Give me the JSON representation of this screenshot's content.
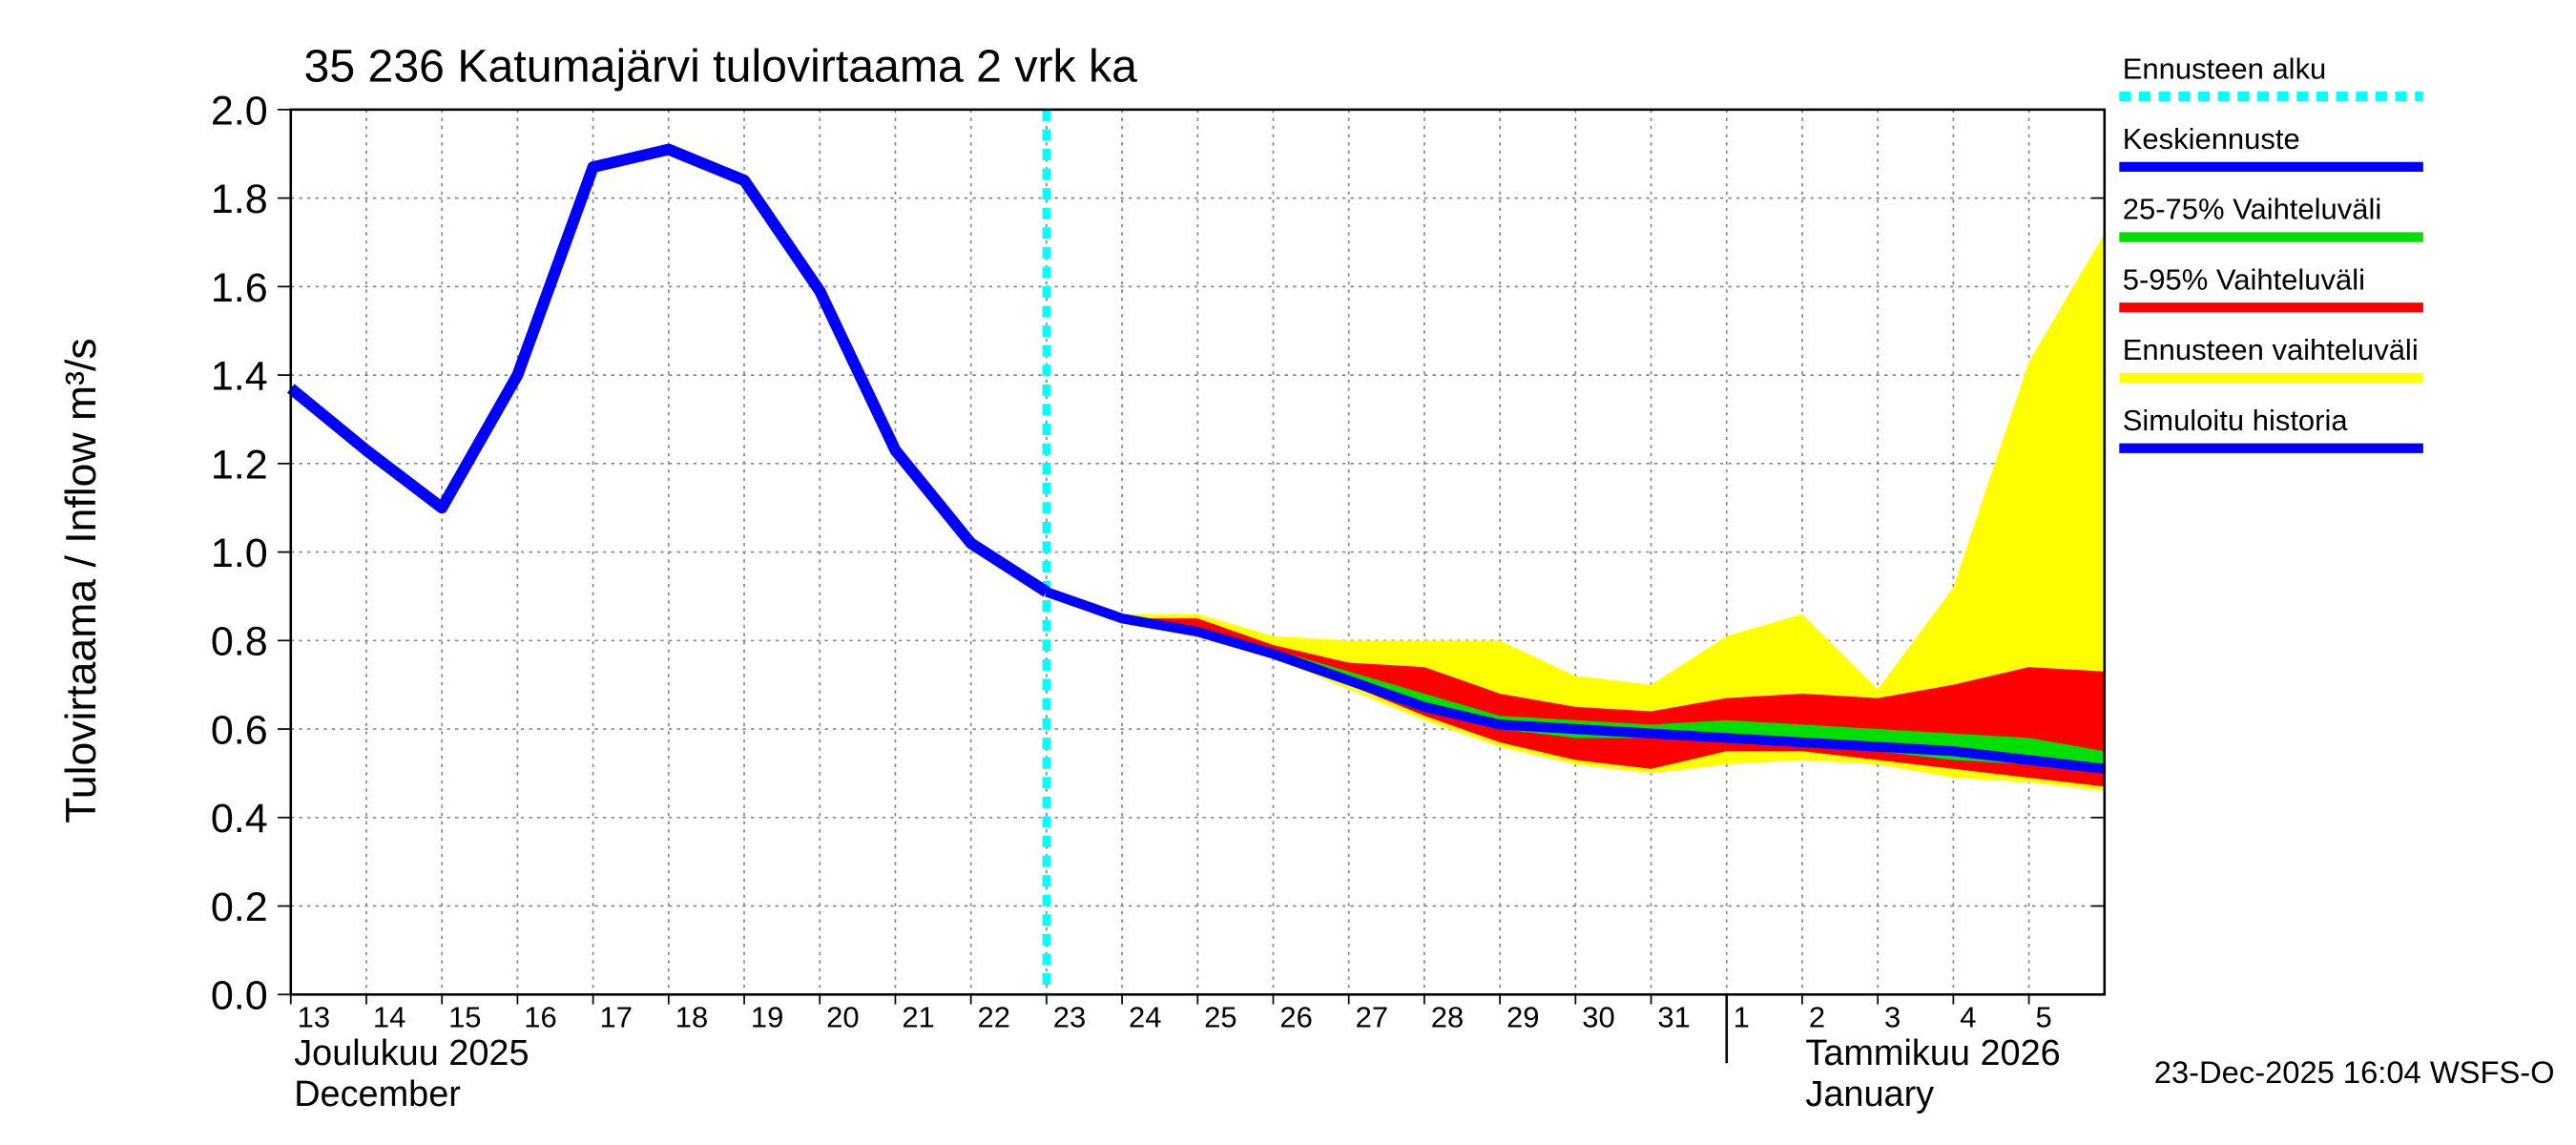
{
  "chart_data": {
    "type": "line",
    "title": "35 236 Katumajärvi tulovirtaama 2 vrk ka",
    "ylabel": "Tulovirtaama / Inflow    m³/s",
    "footer": "23-Dec-2025 16:04 WSFS-O",
    "month_labels": [
      {
        "date": "2025-12-13",
        "lines": [
          "Joulukuu  2025",
          "December"
        ]
      },
      {
        "date": "2026-01-01",
        "lines": [
          "Tammikuu  2026",
          "January"
        ]
      }
    ],
    "x": [
      "2025-12-13",
      "2025-12-14",
      "2025-12-15",
      "2025-12-16",
      "2025-12-17",
      "2025-12-18",
      "2025-12-19",
      "2025-12-20",
      "2025-12-21",
      "2025-12-22",
      "2025-12-23",
      "2025-12-24",
      "2025-12-25",
      "2025-12-26",
      "2025-12-27",
      "2025-12-28",
      "2025-12-29",
      "2025-12-30",
      "2025-12-31",
      "2026-01-01",
      "2026-01-02",
      "2026-01-03",
      "2026-01-04",
      "2026-01-05",
      "2026-01-06"
    ],
    "xlim": [
      "2025-12-13",
      "2026-01-06"
    ],
    "xticks": [
      {
        "value": "2025-12-13",
        "label": "13"
      },
      {
        "value": "2025-12-14",
        "label": "14"
      },
      {
        "value": "2025-12-15",
        "label": "15"
      },
      {
        "value": "2025-12-16",
        "label": "16"
      },
      {
        "value": "2025-12-17",
        "label": "17"
      },
      {
        "value": "2025-12-18",
        "label": "18"
      },
      {
        "value": "2025-12-19",
        "label": "19"
      },
      {
        "value": "2025-12-20",
        "label": "20"
      },
      {
        "value": "2025-12-21",
        "label": "21"
      },
      {
        "value": "2025-12-22",
        "label": "22"
      },
      {
        "value": "2025-12-23",
        "label": "23"
      },
      {
        "value": "2025-12-24",
        "label": "24"
      },
      {
        "value": "2025-12-25",
        "label": "25"
      },
      {
        "value": "2025-12-26",
        "label": "26"
      },
      {
        "value": "2025-12-27",
        "label": "27"
      },
      {
        "value": "2025-12-28",
        "label": "28"
      },
      {
        "value": "2025-12-29",
        "label": "29"
      },
      {
        "value": "2025-12-30",
        "label": "30"
      },
      {
        "value": "2025-12-31",
        "label": "31"
      },
      {
        "value": "2026-01-01",
        "label": "1"
      },
      {
        "value": "2026-01-02",
        "label": "2"
      },
      {
        "value": "2026-01-03",
        "label": "3"
      },
      {
        "value": "2026-01-04",
        "label": "4"
      },
      {
        "value": "2026-01-05",
        "label": "5"
      }
    ],
    "ylim": [
      0,
      2
    ],
    "yticks": [
      {
        "value": 0,
        "label": "0.0"
      },
      {
        "value": 0.2,
        "label": "0.2"
      },
      {
        "value": 0.4,
        "label": "0.4"
      },
      {
        "value": 0.6,
        "label": "0.6"
      },
      {
        "value": 0.8,
        "label": "0.8"
      },
      {
        "value": 1,
        "label": "1.0"
      },
      {
        "value": 1.2,
        "label": "1.2"
      },
      {
        "value": 1.4,
        "label": "1.4"
      },
      {
        "value": 1.6,
        "label": "1.6"
      },
      {
        "value": 1.8,
        "label": "1.8"
      },
      {
        "value": 2,
        "label": "2.0"
      }
    ],
    "grid": true,
    "forecast_start": {
      "name": "Ennusteen alku",
      "date": "2025-12-23",
      "color": "#00ffff"
    },
    "bands": [
      {
        "name": "Ennusteen vaihteluväli",
        "color": "#ffff00",
        "lower": [
          null,
          null,
          null,
          null,
          null,
          null,
          null,
          null,
          null,
          null,
          0.91,
          0.85,
          0.81,
          0.76,
          0.69,
          0.62,
          0.56,
          0.52,
          0.5,
          0.52,
          0.53,
          0.52,
          0.49,
          0.48,
          0.46
        ],
        "upper": [
          null,
          null,
          null,
          null,
          null,
          null,
          null,
          null,
          null,
          null,
          0.91,
          0.86,
          0.86,
          0.81,
          0.8,
          0.8,
          0.8,
          0.72,
          0.7,
          0.81,
          0.86,
          0.69,
          0.92,
          1.43,
          1.72
        ]
      },
      {
        "name": "5-95% Vaihteluväli",
        "color": "#ff0000",
        "lower": [
          null,
          null,
          null,
          null,
          null,
          null,
          null,
          null,
          null,
          null,
          0.91,
          0.85,
          0.81,
          0.76,
          0.7,
          0.63,
          0.57,
          0.53,
          0.51,
          0.55,
          0.55,
          0.53,
          0.51,
          0.49,
          0.47
        ],
        "upper": [
          null,
          null,
          null,
          null,
          null,
          null,
          null,
          null,
          null,
          null,
          0.91,
          0.85,
          0.85,
          0.79,
          0.75,
          0.74,
          0.68,
          0.65,
          0.64,
          0.67,
          0.68,
          0.67,
          0.7,
          0.74,
          0.73
        ]
      },
      {
        "name": "25-75% Vaihteluväli",
        "color": "#00e000",
        "lower": [
          null,
          null,
          null,
          null,
          null,
          null,
          null,
          null,
          null,
          null,
          0.91,
          0.85,
          0.82,
          0.77,
          0.71,
          0.64,
          0.6,
          0.58,
          0.58,
          0.57,
          0.56,
          0.55,
          0.53,
          0.52,
          0.5
        ],
        "upper": [
          null,
          null,
          null,
          null,
          null,
          null,
          null,
          null,
          null,
          null,
          0.91,
          0.85,
          0.83,
          0.78,
          0.73,
          0.68,
          0.63,
          0.62,
          0.61,
          0.62,
          0.61,
          0.6,
          0.59,
          0.58,
          0.55
        ]
      }
    ],
    "series": [
      {
        "name": "Keskiennuste",
        "color": "#0000ff",
        "values": [
          null,
          null,
          null,
          null,
          null,
          null,
          null,
          null,
          null,
          null,
          0.91,
          0.85,
          0.82,
          0.77,
          0.71,
          0.65,
          0.61,
          0.6,
          0.59,
          0.58,
          0.57,
          0.56,
          0.55,
          0.53,
          0.51
        ]
      },
      {
        "name": "Simuloitu historia",
        "color": "#0000ff",
        "values": [
          1.37,
          1.23,
          1.1,
          1.4,
          1.87,
          1.91,
          1.84,
          1.59,
          1.23,
          1.02,
          0.91,
          null,
          null,
          null,
          null,
          null,
          null,
          null,
          null,
          null,
          null,
          null,
          null,
          null,
          null
        ]
      }
    ]
  }
}
